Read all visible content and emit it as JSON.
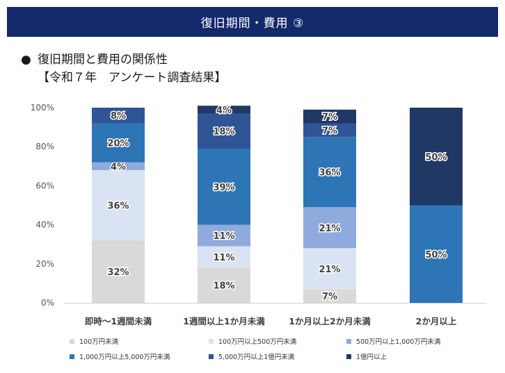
{
  "header": {
    "title": "復旧期間・費用 ③"
  },
  "heading": {
    "bullet": "●",
    "line1": "復旧期間と費用の関係性",
    "line2": "【令和７年　アンケート調査結果】"
  },
  "chart_data": {
    "type": "bar",
    "stacked": true,
    "percent": true,
    "categories": [
      "即時～1週間未満",
      "1週間以上1か月未満",
      "1か月以上2か月未満",
      "2か月以上"
    ],
    "ylim": [
      0,
      100
    ],
    "yticks": [
      "0%",
      "20%",
      "40%",
      "60%",
      "80%",
      "100%"
    ],
    "grid": false,
    "legend": "bottom",
    "series": [
      {
        "name": "100万円未満",
        "color": "#d9d9d9",
        "values": [
          32,
          18,
          7,
          0
        ]
      },
      {
        "name": "100万円以上500万円未満",
        "color": "#dae3f3",
        "values": [
          36,
          11,
          21,
          0
        ]
      },
      {
        "name": "500万円以上1,000万円未満",
        "color": "#8faadc",
        "values": [
          4,
          11,
          21,
          0
        ]
      },
      {
        "name": "1,000万円以上5,000万円未満",
        "color": "#2e75b6",
        "values": [
          20,
          39,
          36,
          50
        ]
      },
      {
        "name": "5,000万円以上1億円未満",
        "color": "#2f5597",
        "values": [
          8,
          18,
          7,
          0
        ]
      },
      {
        "name": "1億円以上",
        "color": "#203864",
        "values": [
          0,
          4,
          7,
          50
        ]
      }
    ]
  }
}
